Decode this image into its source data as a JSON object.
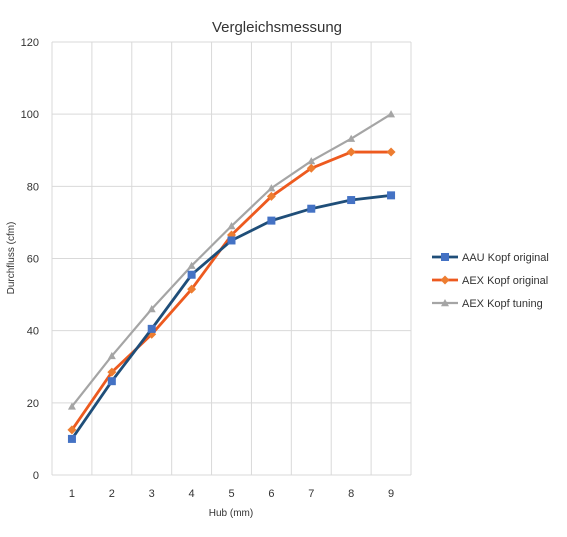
{
  "chart_data": {
    "type": "line",
    "title": "Vergleichsmessung",
    "xlabel": "Hub (mm)",
    "ylabel": "Durchfluss (cfm)",
    "x": [
      "1",
      "2",
      "3",
      "4",
      "5",
      "6",
      "7",
      "8",
      "9"
    ],
    "yticks": [
      "0",
      "20",
      "40",
      "60",
      "80",
      "100",
      "120"
    ],
    "ylim": [
      0,
      120
    ],
    "grid": true,
    "legend_position": "right",
    "series": [
      {
        "name": "AAU Kopf original",
        "color": "#1F4E79",
        "marker_color": "#4472C4",
        "marker": "square",
        "values": [
          10,
          26,
          40.5,
          55.5,
          65,
          70.5,
          73.8,
          76.2,
          77.5
        ]
      },
      {
        "name": "AEX Kopf original",
        "color": "#ED5A1F",
        "marker_color": "#ED7D31",
        "marker": "diamond",
        "values": [
          12.5,
          28.5,
          39,
          51.5,
          66.5,
          77.2,
          85,
          89.5,
          89.5
        ]
      },
      {
        "name": "AEX Kopf tuning",
        "color": "#A5A5A5",
        "marker_color": "#A5A5A5",
        "marker": "triangle",
        "values": [
          19,
          33,
          46,
          58,
          69,
          79.5,
          87,
          93.2,
          100
        ]
      }
    ]
  }
}
